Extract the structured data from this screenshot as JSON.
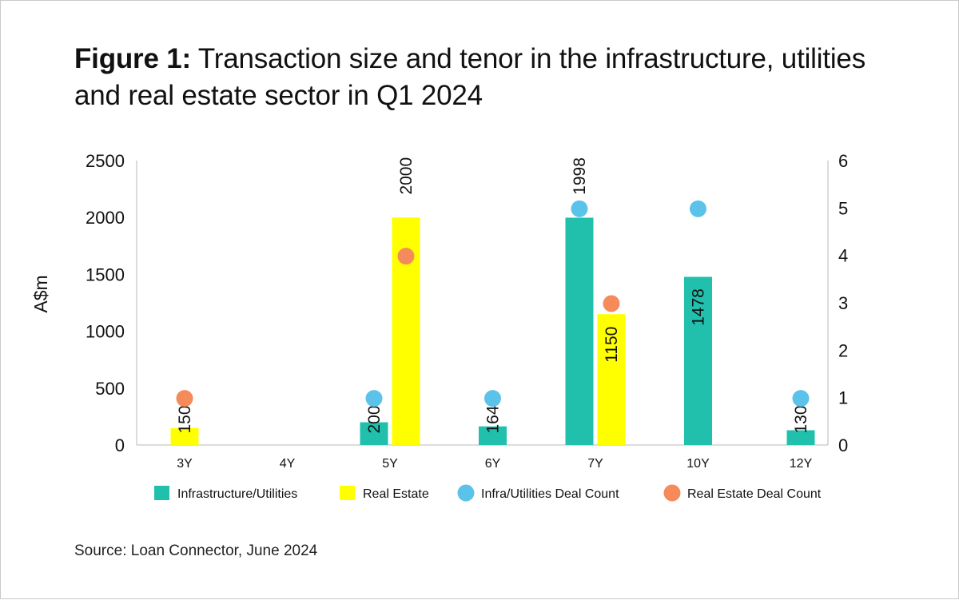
{
  "figure": {
    "label": "Figure 1:",
    "title": "Transaction size and tenor in the infrastructure, utilities and real estate sector in Q1 2024",
    "source": "Source: Loan Connector, June 2024"
  },
  "chart_data": {
    "type": "bar",
    "categories": [
      "3Y",
      "4Y",
      "5Y",
      "6Y",
      "7Y",
      "10Y",
      "12Y"
    ],
    "ylabel": "A$m",
    "ylim": [
      0,
      2500
    ],
    "yticks": [
      "0",
      "500",
      "1000",
      "1500",
      "2000",
      "2500"
    ],
    "y2lim": [
      0,
      6
    ],
    "y2ticks": [
      "0",
      "1",
      "2",
      "3",
      "4",
      "5",
      "6"
    ],
    "grid": false,
    "legend_position": "bottom",
    "series": [
      {
        "name": "Infrastructure/Utilities",
        "kind": "bar",
        "axis": "left",
        "color": "#20c0ad",
        "values": [
          null,
          null,
          200,
          164,
          1998,
          1478,
          130
        ],
        "labels": [
          "",
          "",
          "200",
          "164",
          "1998",
          "1478",
          "130"
        ]
      },
      {
        "name": "Real Estate",
        "kind": "bar",
        "axis": "left",
        "color": "#ffff00",
        "values": [
          150,
          null,
          2000,
          null,
          1150,
          null,
          null
        ],
        "labels": [
          "150",
          "",
          "2000",
          "",
          "1150",
          "",
          ""
        ]
      },
      {
        "name": "Infra/Utilities Deal Count",
        "kind": "dot",
        "axis": "right",
        "color": "#5bc3ea",
        "values": [
          null,
          null,
          1,
          1,
          5,
          5,
          1
        ]
      },
      {
        "name": "Real Estate Deal Count",
        "kind": "dot",
        "axis": "right",
        "color": "#f58a5a",
        "values": [
          1,
          null,
          4,
          null,
          3,
          null,
          null
        ]
      }
    ]
  }
}
